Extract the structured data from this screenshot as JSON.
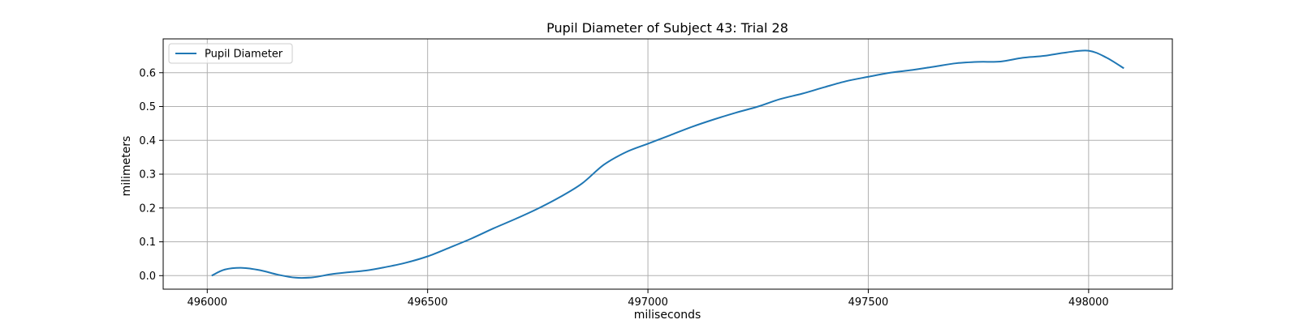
{
  "chart_data": {
    "type": "line",
    "title": "Pupil Diameter of Subject 43: Trial 28",
    "xlabel": "miliseconds",
    "ylabel": "milimeters",
    "xlim": [
      495900,
      498190
    ],
    "ylim": [
      -0.04,
      0.7
    ],
    "xticks": [
      496000,
      496500,
      497000,
      497500,
      498000
    ],
    "xtick_labels": [
      "496000",
      "496500",
      "497000",
      "497500",
      "498000"
    ],
    "yticks": [
      0.0,
      0.1,
      0.2,
      0.3,
      0.4,
      0.5,
      0.6
    ],
    "ytick_labels": [
      "0.0",
      "0.1",
      "0.2",
      "0.3",
      "0.4",
      "0.5",
      "0.6"
    ],
    "grid": true,
    "legend_position": "upper-left",
    "colors": {
      "series": "#1f77b4",
      "grid": "#b0b0b0",
      "axes": "#000000"
    },
    "series": [
      {
        "name": "Pupil Diameter",
        "x": [
          496010,
          496040,
          496080,
          496120,
          496160,
          496200,
          496240,
          496280,
          496320,
          496360,
          496400,
          496450,
          496500,
          496550,
          496600,
          496650,
          496700,
          496750,
          496800,
          496850,
          496900,
          496950,
          497000,
          497050,
          497100,
          497150,
          497200,
          497250,
          497300,
          497350,
          497400,
          497450,
          497500,
          497550,
          497600,
          497650,
          497700,
          497750,
          497800,
          497850,
          497900,
          497950,
          498000,
          498040,
          498080
        ],
        "y": [
          0.0,
          0.018,
          0.023,
          0.016,
          0.003,
          -0.006,
          -0.005,
          0.004,
          0.01,
          0.015,
          0.024,
          0.038,
          0.057,
          0.083,
          0.11,
          0.14,
          0.168,
          0.198,
          0.232,
          0.272,
          0.328,
          0.365,
          0.39,
          0.415,
          0.44,
          0.462,
          0.482,
          0.5,
          0.522,
          0.538,
          0.557,
          0.575,
          0.588,
          0.6,
          0.608,
          0.618,
          0.628,
          0.632,
          0.633,
          0.644,
          0.65,
          0.66,
          0.665,
          0.645,
          0.613
        ]
      }
    ]
  }
}
